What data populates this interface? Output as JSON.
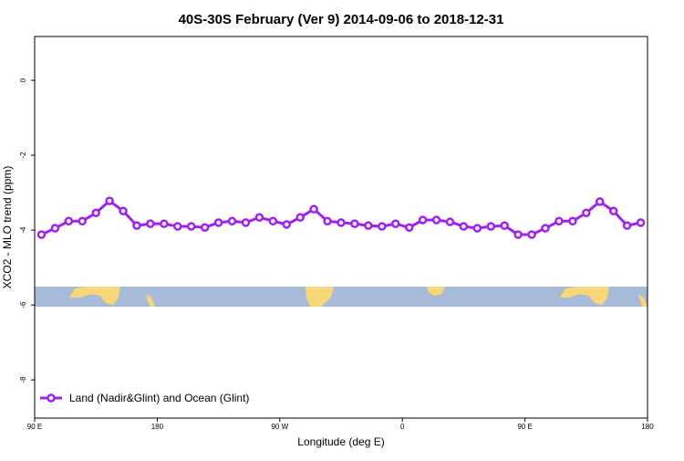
{
  "chart_data": {
    "type": "line",
    "title": "40S-30S February (Ver 9)   2014-09-06 to 2018-12-31",
    "xlabel": "Longitude (deg E)",
    "ylabel": "XCO2 - MLO trend (ppm)",
    "x": [
      95,
      105,
      115,
      125,
      135,
      145,
      155,
      165,
      175,
      185,
      195,
      205,
      215,
      225,
      235,
      245,
      255,
      265,
      275,
      285,
      295,
      305,
      315,
      325,
      335,
      345,
      355,
      365,
      375,
      385,
      395,
      405,
      415,
      425,
      435,
      445,
      455,
      465,
      475,
      485,
      495,
      505,
      515,
      525,
      535
    ],
    "series": [
      {
        "name": "Land (Nadir&Glint) and Ocean (Glint)",
        "color": "#a020f0",
        "values": [
          -4.12,
          -3.95,
          -3.76,
          -3.76,
          -3.54,
          -3.22,
          -3.49,
          -3.88,
          -3.83,
          -3.83,
          -3.9,
          -3.9,
          -3.93,
          -3.8,
          -3.76,
          -3.8,
          -3.66,
          -3.76,
          -3.85,
          -3.66,
          -3.44,
          -3.76,
          -3.8,
          -3.83,
          -3.88,
          -3.9,
          -3.83,
          -3.93,
          -3.73,
          -3.73,
          -3.78,
          -3.9,
          -3.95,
          -3.9,
          -3.88,
          -4.12,
          -4.12,
          -3.95,
          -3.76,
          -3.76,
          -3.54,
          -3.24,
          -3.49,
          -3.88,
          -3.8
        ]
      }
    ],
    "xlim": [
      90,
      540
    ],
    "xticks": [
      {
        "value": 90,
        "label": "90 E"
      },
      {
        "value": 180,
        "label": "180"
      },
      {
        "value": 270,
        "label": "90 W"
      },
      {
        "value": 360,
        "label": "0"
      },
      {
        "value": 450,
        "label": "90 E"
      },
      {
        "value": 540,
        "label": "180"
      }
    ],
    "ylim": [
      -9.02,
      1.17
    ],
    "yticks": [
      0,
      -2,
      -4,
      -6,
      -8
    ],
    "legend": "bottom-left"
  }
}
